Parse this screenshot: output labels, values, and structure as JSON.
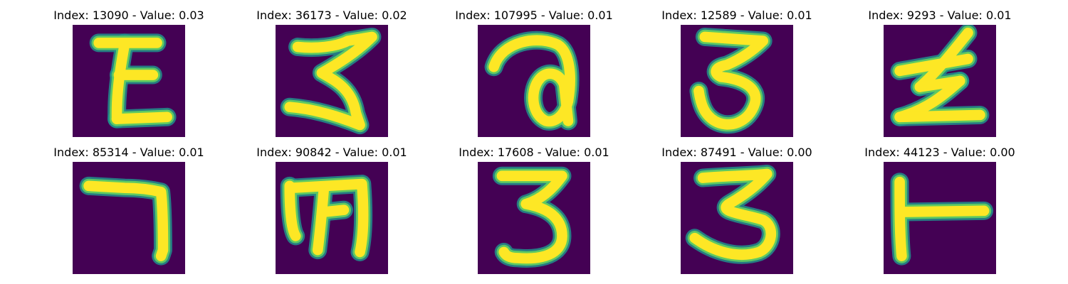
{
  "colors": {
    "background": "#440154",
    "stroke_edge": "#21918c",
    "stroke_mid": "#5ec962",
    "stroke_core": "#fde725"
  },
  "panels": [
    {
      "index": "13090",
      "value": "0.03",
      "title": "Index: 13090 - Value: 0.03",
      "glyph": "E"
    },
    {
      "index": "36173",
      "value": "0.02",
      "title": "Index: 36173 - Value: 0.02",
      "glyph": "3-open"
    },
    {
      "index": "107995",
      "value": "0.01",
      "title": "Index: 107995 - Value: 0.01",
      "glyph": "a-loop"
    },
    {
      "index": "12589",
      "value": "0.01",
      "title": "Index: 12589 - Value: 0.01",
      "glyph": "3"
    },
    {
      "index": "9293",
      "value": "0.01",
      "title": "Index: 9293 - Value: 0.01",
      "glyph": "z-zig"
    },
    {
      "index": "85314",
      "value": "0.01",
      "title": "Index: 85314 - Value: 0.01",
      "glyph": "7-hook"
    },
    {
      "index": "90842",
      "value": "0.01",
      "title": "Index: 90842 - Value: 0.01",
      "glyph": "m"
    },
    {
      "index": "17608",
      "value": "0.01",
      "title": "Index: 17608 - Value: 0.01",
      "glyph": "3-bold"
    },
    {
      "index": "87491",
      "value": "0.00",
      "title": "Index: 87491 - Value: 0.00",
      "glyph": "3-wide"
    },
    {
      "index": "44123",
      "value": "0.00",
      "title": "Index: 44123 - Value: 0.00",
      "glyph": "T-side"
    }
  ]
}
